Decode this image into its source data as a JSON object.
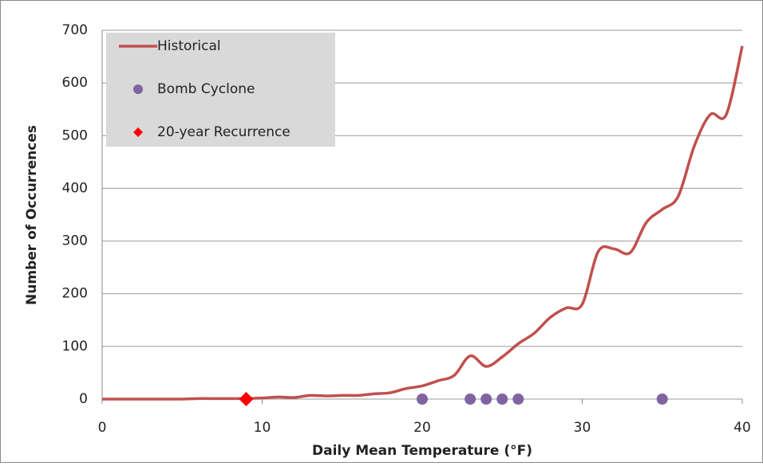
{
  "chart_data": {
    "type": "line",
    "x_label": "Daily Mean Temperature (°F)",
    "y_label": "Number of Occurrences",
    "xlim": [
      0,
      40
    ],
    "xticks": [
      0,
      10,
      20,
      30,
      40
    ],
    "ylim": [
      0,
      700
    ],
    "yticks": [
      0,
      100,
      200,
      300,
      400,
      500,
      600,
      700
    ],
    "grid": true,
    "legend": "upper left",
    "series": [
      {
        "name": "Historical",
        "color": "#c0504d",
        "marker": "line",
        "x": [
          0,
          1,
          2,
          3,
          4,
          5,
          6,
          7,
          8,
          9,
          10,
          11,
          12,
          13,
          14,
          15,
          16,
          17,
          18,
          19,
          20,
          21,
          22,
          23,
          24,
          25,
          26,
          27,
          28,
          29,
          30,
          31,
          32,
          33,
          34,
          35,
          36,
          37,
          38,
          39,
          40
        ],
        "values": [
          0,
          0,
          0,
          0,
          0,
          0,
          1,
          1,
          1,
          1,
          2,
          4,
          3,
          7,
          6,
          7,
          7,
          10,
          12,
          20,
          25,
          35,
          45,
          82,
          62,
          80,
          105,
          125,
          155,
          173,
          180,
          280,
          285,
          278,
          335,
          360,
          385,
          480,
          540,
          540,
          670
        ]
      },
      {
        "name": "Bomb Cyclone",
        "color": "#8064a2",
        "marker": "circle",
        "x": [
          20,
          23,
          24,
          25,
          26,
          35
        ],
        "values": [
          0,
          0,
          0,
          0,
          0,
          0
        ]
      },
      {
        "name": "20-year Recurrence",
        "color": "#ff0000",
        "marker": "diamond",
        "x": [
          9
        ],
        "values": [
          0
        ]
      }
    ]
  }
}
